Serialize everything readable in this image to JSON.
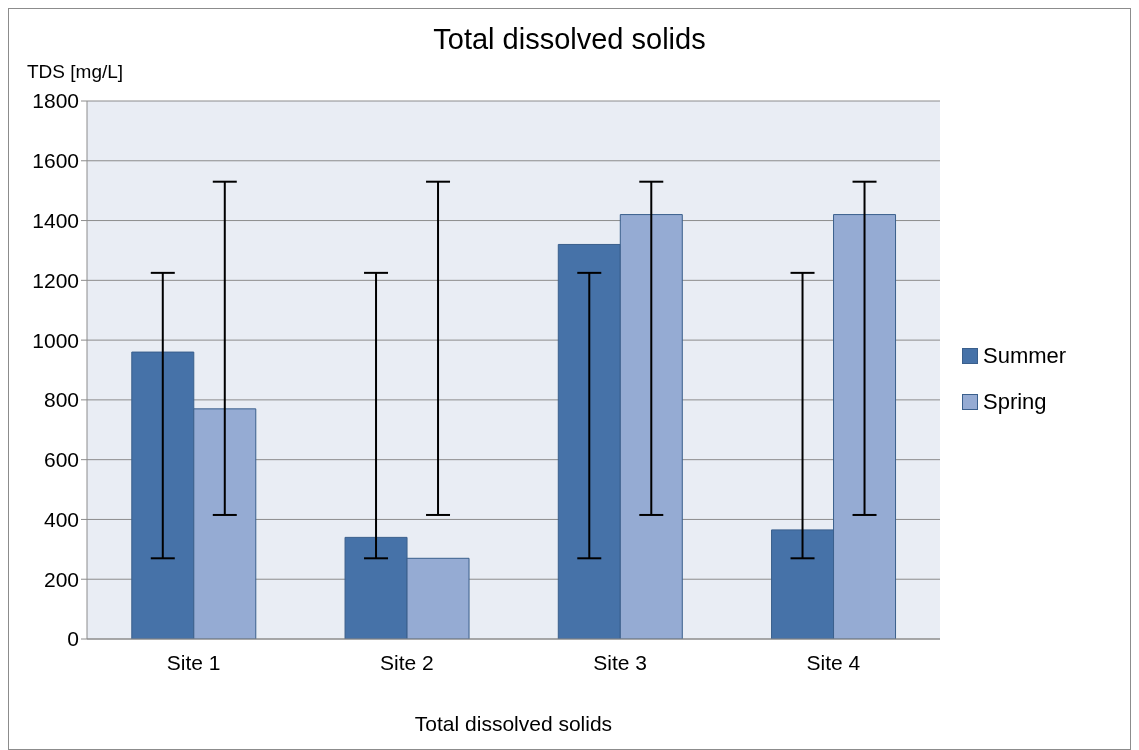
{
  "chart_data": {
    "type": "bar",
    "title": "Total dissolved solids",
    "ylabel": "TDS [mg/L]",
    "xlabel": "Total dissolved solids",
    "categories": [
      "Site 1",
      "Site 2",
      "Site 3",
      "Site 4"
    ],
    "series": [
      {
        "name": "Summer",
        "color": "#4672a8",
        "values": [
          960,
          340,
          1320,
          365
        ],
        "errors": [
          [
            270,
            1225
          ],
          [
            270,
            1225
          ],
          [
            270,
            1225
          ],
          [
            270,
            1225
          ]
        ]
      },
      {
        "name": "Spring",
        "color": "#95abd3",
        "values": [
          770,
          270,
          1420,
          1420
        ],
        "errors": [
          [
            415,
            1530
          ],
          [
            415,
            1530
          ],
          [
            415,
            1530
          ],
          [
            415,
            1530
          ]
        ]
      }
    ],
    "ylim": [
      0,
      1800
    ],
    "yticks": [
      0,
      200,
      400,
      600,
      800,
      1000,
      1200,
      1400,
      1600,
      1800
    ],
    "grid": "y",
    "legend": "right"
  }
}
